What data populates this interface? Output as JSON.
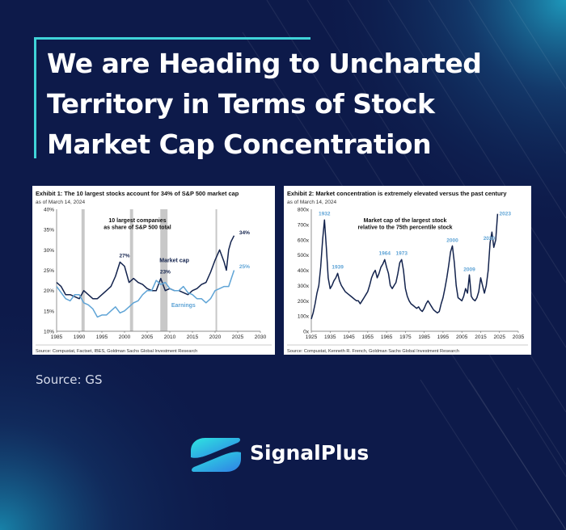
{
  "title": "We are Heading to Uncharted Territory in Terms of Stock Market Cap Concentration",
  "source_label": "Source: GS",
  "brand": {
    "name": "SignalPlus"
  },
  "colors": {
    "background": "#0d1a4a",
    "accent": "#3fd3d8",
    "navy_series": "#13234d",
    "light_series": "#5fa4d6"
  },
  "chart_data": [
    {
      "type": "line",
      "title": "Exhibit 1: The 10 largest stocks account for 34% of S&P 500 market cap",
      "subtitle": "as of March 14, 2024",
      "annotation": "10 largest companies as share of S&P 500 total",
      "source": "Source: Compustat, Factset, IBES, Goldman Sachs Global Investment Research",
      "xlim": [
        1985,
        2030
      ],
      "ylim": [
        10,
        40
      ],
      "x_ticks": [
        "1985",
        "1990",
        "1995",
        "2000",
        "2005",
        "2010",
        "2015",
        "2020",
        "2025",
        "2030"
      ],
      "y_ticks": [
        "10%",
        "15%",
        "20%",
        "25%",
        "30%",
        "35%",
        "40%"
      ],
      "recessions": [
        [
          1990.5,
          1991.2
        ],
        [
          2001.2,
          2001.9
        ],
        [
          2007.9,
          2009.5
        ],
        [
          2020.1,
          2020.4
        ]
      ],
      "series": [
        {
          "name": "Market cap",
          "color": "#13234d",
          "x": [
            1985,
            1986,
            1987,
            1988,
            1989,
            1990,
            1991,
            1992,
            1993,
            1994,
            1995,
            1996,
            1997,
            1998,
            1999,
            2000,
            2001,
            2002,
            2003,
            2004,
            2005,
            2006,
            2007,
            2008,
            2009,
            2010,
            2011,
            2012,
            2013,
            2014,
            2015,
            2016,
            2017,
            2018,
            2019,
            2020,
            2021,
            2022,
            2022.5,
            2023,
            2023.5,
            2024.2
          ],
          "y": [
            22,
            21,
            19,
            19,
            18.5,
            18,
            20,
            19,
            18,
            18,
            19,
            20,
            21,
            23.5,
            27,
            26,
            22,
            23,
            22,
            21.5,
            20.5,
            20,
            20,
            23,
            20,
            20.5,
            20,
            20,
            19.5,
            19,
            20,
            20.5,
            21.5,
            22,
            24.5,
            27.5,
            30,
            27,
            25,
            30,
            32,
            33.5
          ]
        },
        {
          "name": "Earnings",
          "color": "#5fa4d6",
          "x": [
            1985,
            1986,
            1987,
            1988,
            1989,
            1990,
            1991,
            1992,
            1993,
            1994,
            1995,
            1996,
            1997,
            1998,
            1999,
            2000,
            2001,
            2002,
            2003,
            2004,
            2005,
            2006,
            2007,
            2008,
            2009,
            2010,
            2011,
            2012,
            2013,
            2014,
            2015,
            2016,
            2017,
            2018,
            2019,
            2020,
            2021,
            2022,
            2023,
            2024.2
          ],
          "y": [
            21,
            19.5,
            18,
            17.5,
            19,
            19,
            17,
            16.5,
            15.5,
            13.5,
            14,
            14,
            15,
            16,
            14.5,
            15,
            16,
            17,
            17.5,
            19,
            20,
            20,
            22.5,
            21.5,
            22,
            20.5,
            20,
            20,
            21,
            19.5,
            19,
            18,
            18,
            17,
            18,
            20,
            20.5,
            21,
            21,
            25
          ]
        }
      ],
      "labels": [
        {
          "text": "27%",
          "x": 2000,
          "y": 28.2
        },
        {
          "text": "23%",
          "x": 2009,
          "y": 24.2
        },
        {
          "text": "34%",
          "x": 2026.5,
          "y": 33.8
        },
        {
          "text": "25%",
          "x": 2026.5,
          "y": 25.5
        },
        {
          "text": "Market cap",
          "x": 2011,
          "y": 27
        },
        {
          "text": "Earnings",
          "x": 2013,
          "y": 16
        }
      ]
    },
    {
      "type": "line",
      "title": "Exhibit 2: Market concentration is extremely elevated versus the past century",
      "subtitle": "as of March 14, 2024",
      "annotation": "Market cap of the largest stock relative to the 75th percentile stock",
      "source": "Source: Compustat, Kenneth R. French, Goldman Sachs Global Investment Research",
      "xlim": [
        1925,
        2035
      ],
      "ylim": [
        0,
        800
      ],
      "x_ticks": [
        "1925",
        "1935",
        "1945",
        "1955",
        "1965",
        "1975",
        "1985",
        "1995",
        "2005",
        "2015",
        "2025",
        "2035"
      ],
      "y_ticks": [
        "0x",
        "100x",
        "200x",
        "300x",
        "400x",
        "500x",
        "600x",
        "700x",
        "800x"
      ],
      "series": [
        {
          "name": "",
          "color": "#13234d",
          "x": [
            1925,
            1926,
            1927,
            1928,
            1929,
            1930,
            1931,
            1932,
            1933,
            1934,
            1935,
            1936,
            1937,
            1938,
            1939,
            1940,
            1941,
            1942,
            1943,
            1944,
            1945,
            1946,
            1947,
            1948,
            1949,
            1950,
            1951,
            1952,
            1953,
            1954,
            1955,
            1956,
            1957,
            1958,
            1959,
            1960,
            1961,
            1962,
            1963,
            1964,
            1965,
            1966,
            1967,
            1968,
            1969,
            1970,
            1971,
            1972,
            1973,
            1974,
            1975,
            1976,
            1977,
            1978,
            1979,
            1980,
            1981,
            1982,
            1983,
            1984,
            1985,
            1986,
            1987,
            1988,
            1989,
            1990,
            1991,
            1992,
            1993,
            1994,
            1995,
            1996,
            1997,
            1998,
            1999,
            2000,
            2001,
            2002,
            2003,
            2004,
            2005,
            2006,
            2007,
            2008,
            2009,
            2010,
            2011,
            2012,
            2013,
            2014,
            2015,
            2016,
            2017,
            2018,
            2019,
            2020,
            2021,
            2022,
            2023,
            2024
          ],
          "y": [
            80,
            120,
            180,
            250,
            300,
            420,
            600,
            730,
            550,
            350,
            280,
            300,
            330,
            350,
            380,
            330,
            300,
            280,
            260,
            250,
            240,
            230,
            220,
            210,
            200,
            200,
            180,
            200,
            220,
            240,
            260,
            300,
            350,
            380,
            400,
            350,
            380,
            420,
            440,
            470,
            420,
            380,
            300,
            280,
            300,
            320,
            380,
            450,
            470,
            400,
            280,
            230,
            200,
            180,
            170,
            160,
            150,
            160,
            140,
            130,
            150,
            180,
            200,
            180,
            160,
            140,
            130,
            120,
            130,
            180,
            220,
            280,
            350,
            430,
            520,
            560,
            450,
            300,
            220,
            210,
            200,
            230,
            280,
            250,
            370,
            230,
            210,
            200,
            220,
            260,
            350,
            300,
            250,
            300,
            400,
            580,
            650,
            550,
            600,
            770
          ]
        }
      ],
      "labels": [
        {
          "text": "1932",
          "x": 1932,
          "y": 760
        },
        {
          "text": "1939",
          "x": 1939,
          "y": 410
        },
        {
          "text": "1964",
          "x": 1964,
          "y": 500
        },
        {
          "text": "1973",
          "x": 1973,
          "y": 500
        },
        {
          "text": "2000",
          "x": 2000,
          "y": 585
        },
        {
          "text": "2009",
          "x": 2009,
          "y": 395
        },
        {
          "text": "2020",
          "x": 2019.5,
          "y": 600
        },
        {
          "text": "2023",
          "x": 2028,
          "y": 760
        }
      ]
    }
  ]
}
